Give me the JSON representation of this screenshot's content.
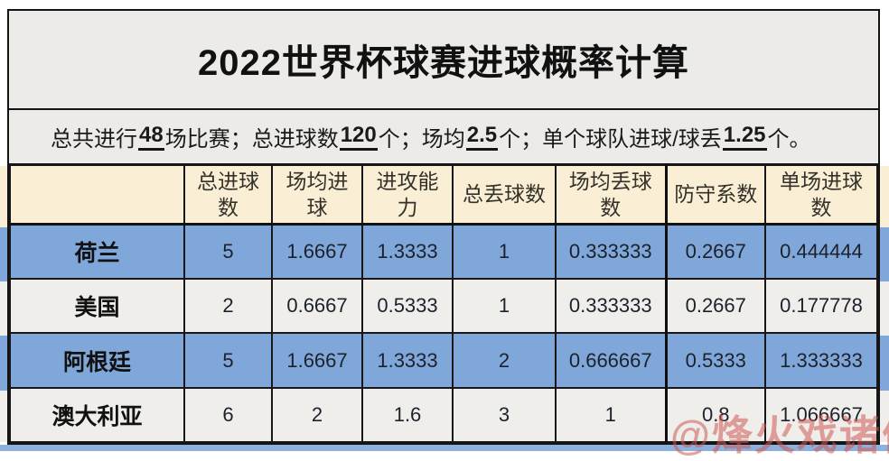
{
  "title": "2022世界杯球赛进球概率计算",
  "summary": {
    "s1": "总共进行",
    "v1": "48",
    "s2": "场比赛；总进球数",
    "v2": "120",
    "s3": "个；场均",
    "v3": "2.5",
    "s4": "个；单个球队进球/球丢",
    "v4": "1.25",
    "s5": "个。"
  },
  "table": {
    "columns": [
      "",
      "总进球数",
      "场均进球",
      "进攻能力",
      "总丢球数",
      "场均丢球数",
      "防守系数",
      "单场进球数"
    ],
    "rows": [
      {
        "team": "荷兰",
        "values": [
          "5",
          "1.6667",
          "1.3333",
          "1",
          "0.333333",
          "0.2667",
          "0.444444"
        ]
      },
      {
        "team": "美国",
        "values": [
          "2",
          "0.6667",
          "0.5333",
          "1",
          "0.333333",
          "0.2667",
          "0.177778"
        ]
      },
      {
        "team": "阿根廷",
        "values": [
          "5",
          "1.6667",
          "1.3333",
          "2",
          "0.666667",
          "0.5333",
          "1.333333"
        ]
      },
      {
        "team": "澳大利亚",
        "values": [
          "6",
          "2",
          "1.6",
          "3",
          "1",
          "0.8",
          "1.066667"
        ]
      }
    ]
  },
  "watermark": "@烽火戏诸侯",
  "colors": {
    "header_row_bg": "#FAEFD5",
    "blue_row_bg": "#7FA7D9",
    "light_row_bg": "#EFEEEB",
    "section_bg": "#ECEBE8",
    "grid_border": "#141414",
    "watermark_red": "#CD5A53"
  }
}
